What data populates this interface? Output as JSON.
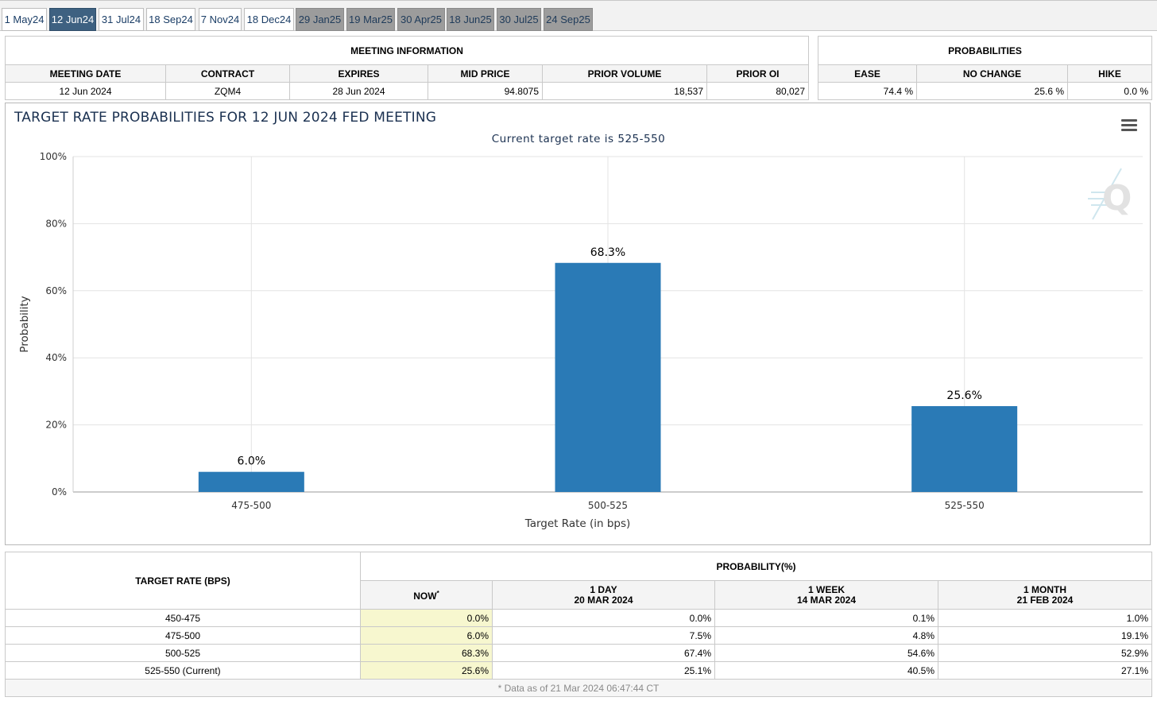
{
  "tabs": [
    {
      "label": "1 May24",
      "state": "normal"
    },
    {
      "label": "12 Jun24",
      "state": "active"
    },
    {
      "label": "31 Jul24",
      "state": "normal"
    },
    {
      "label": "18 Sep24",
      "state": "normal"
    },
    {
      "label": "7 Nov24",
      "state": "normal"
    },
    {
      "label": "18 Dec24",
      "state": "normal"
    },
    {
      "label": "29 Jan25",
      "state": "future"
    },
    {
      "label": "19 Mar25",
      "state": "future"
    },
    {
      "label": "30 Apr25",
      "state": "future"
    },
    {
      "label": "18 Jun25",
      "state": "future"
    },
    {
      "label": "30 Jul25",
      "state": "future"
    },
    {
      "label": "24 Sep25",
      "state": "future"
    }
  ],
  "meeting_info": {
    "section_title": "MEETING INFORMATION",
    "headers": {
      "meeting_date": "MEETING DATE",
      "contract": "CONTRACT",
      "expires": "EXPIRES",
      "mid_price": "MID PRICE",
      "prior_volume": "PRIOR VOLUME",
      "prior_oi": "PRIOR OI"
    },
    "values": {
      "meeting_date": "12 Jun 2024",
      "contract": "ZQM4",
      "expires": "28 Jun 2024",
      "mid_price": "94.8075",
      "prior_volume": "18,537",
      "prior_oi": "80,027"
    }
  },
  "probabilities": {
    "section_title": "PROBABILITIES",
    "headers": {
      "ease": "EASE",
      "no_change": "NO CHANGE",
      "hike": "HIKE"
    },
    "values": {
      "ease": "74.4 %",
      "no_change": "25.6 %",
      "hike": "0.0 %"
    }
  },
  "chart": {
    "title": "TARGET RATE PROBABILITIES FOR 12 JUN 2024 FED MEETING",
    "subtitle": "Current target rate is 525-550"
  },
  "chart_data": {
    "type": "bar",
    "title": "TARGET RATE PROBABILITIES FOR 12 JUN 2024 FED MEETING",
    "subtitle": "Current target rate is 525-550",
    "categories": [
      "475-500",
      "500-525",
      "525-550"
    ],
    "values": [
      6.0,
      68.3,
      25.6
    ],
    "data_labels": [
      "6.0%",
      "68.3%",
      "25.6%"
    ],
    "xlabel": "Target Rate (in bps)",
    "ylabel": "Probability",
    "ylim": [
      0,
      100
    ],
    "yticks": [
      0,
      20,
      40,
      60,
      80,
      100
    ],
    "ytick_labels": [
      "0%",
      "20%",
      "40%",
      "60%",
      "80%",
      "100%"
    ],
    "grid": true,
    "bar_color": "#2a7ab6"
  },
  "prob_table": {
    "target_rate_header": "TARGET RATE (BPS)",
    "probability_header": "PROBABILITY(%)",
    "columns": [
      {
        "line1": "NOW",
        "sup": "*",
        "line2": ""
      },
      {
        "line1": "1 DAY",
        "line2": "20 MAR 2024"
      },
      {
        "line1": "1 WEEK",
        "line2": "14 MAR 2024"
      },
      {
        "line1": "1 MONTH",
        "line2": "21 FEB 2024"
      }
    ],
    "rows": [
      {
        "rate": "450-475",
        "now": "0.0%",
        "day": "0.0%",
        "week": "0.1%",
        "month": "1.0%"
      },
      {
        "rate": "475-500",
        "now": "6.0%",
        "day": "7.5%",
        "week": "4.8%",
        "month": "19.1%"
      },
      {
        "rate": "500-525",
        "now": "68.3%",
        "day": "67.4%",
        "week": "54.6%",
        "month": "52.9%"
      },
      {
        "rate": "525-550 (Current)",
        "now": "25.6%",
        "day": "25.1%",
        "week": "40.5%",
        "month": "27.1%"
      }
    ],
    "footnote": "* Data as of 21 Mar 2024 06:47:44 CT"
  }
}
